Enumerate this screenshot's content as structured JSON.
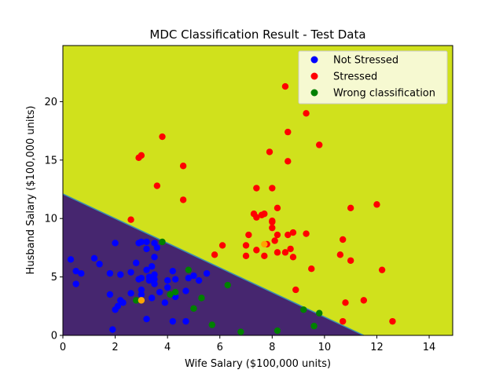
{
  "chart_data": {
    "type": "scatter",
    "title": "MDC Classification Result - Test Data",
    "xlabel": "Wife Salary ($100,000 units)",
    "ylabel": "Husband Salary ($100,000 units)",
    "xlim": [
      0,
      14.9
    ],
    "ylim": [
      0,
      24.8
    ],
    "xticks": [
      0,
      2,
      4,
      6,
      8,
      10,
      12,
      14
    ],
    "yticks": [
      0,
      5,
      10,
      15,
      20
    ],
    "grid": false,
    "legend_position": "top-right",
    "decision_boundary": {
      "points": [
        [
          0,
          12.1
        ],
        [
          11.5,
          0
        ]
      ],
      "region_below_color": "#46266f",
      "region_above_color": "#d0e11c",
      "line_color": "#3a8fb0"
    },
    "series": [
      {
        "name": "Not Stressed",
        "color": "#0000ff",
        "points": [
          [
            0.3,
            6.5
          ],
          [
            0.5,
            4.4
          ],
          [
            0.5,
            5.5
          ],
          [
            0.7,
            5.3
          ],
          [
            1.2,
            6.6
          ],
          [
            1.4,
            6.1
          ],
          [
            1.8,
            3.5
          ],
          [
            1.8,
            5.3
          ],
          [
            1.9,
            0.5
          ],
          [
            2.0,
            7.9
          ],
          [
            2.0,
            2.2
          ],
          [
            2.1,
            2.5
          ],
          [
            2.2,
            3.0
          ],
          [
            2.2,
            5.2
          ],
          [
            2.3,
            2.8
          ],
          [
            2.6,
            5.4
          ],
          [
            2.6,
            3.6
          ],
          [
            2.8,
            6.2
          ],
          [
            2.9,
            7.9
          ],
          [
            2.9,
            4.8
          ],
          [
            3.0,
            8.0
          ],
          [
            3.0,
            4.9
          ],
          [
            3.0,
            3.9
          ],
          [
            3.0,
            3.5
          ],
          [
            3.2,
            8.0
          ],
          [
            3.2,
            7.4
          ],
          [
            3.2,
            5.6
          ],
          [
            3.2,
            1.4
          ],
          [
            3.3,
            5.0
          ],
          [
            3.3,
            4.7
          ],
          [
            3.4,
            5.9
          ],
          [
            3.4,
            3.2
          ],
          [
            3.5,
            7.9
          ],
          [
            3.5,
            6.7
          ],
          [
            3.5,
            5.2
          ],
          [
            3.5,
            4.8
          ],
          [
            3.5,
            4.4
          ],
          [
            3.6,
            7.5
          ],
          [
            3.7,
            3.7
          ],
          [
            3.9,
            2.8
          ],
          [
            4.0,
            4.7
          ],
          [
            4.0,
            4.1
          ],
          [
            4.2,
            5.5
          ],
          [
            4.2,
            1.2
          ],
          [
            4.3,
            4.8
          ],
          [
            4.3,
            3.3
          ],
          [
            4.7,
            1.2
          ],
          [
            4.7,
            3.8
          ],
          [
            4.8,
            4.9
          ],
          [
            5.0,
            5.1
          ],
          [
            5.2,
            4.7
          ],
          [
            5.5,
            5.3
          ]
        ]
      },
      {
        "name": "Stressed",
        "color": "#ff0000",
        "points": [
          [
            2.6,
            9.9
          ],
          [
            2.9,
            15.2
          ],
          [
            3.0,
            15.4
          ],
          [
            3.6,
            12.8
          ],
          [
            3.8,
            17.0
          ],
          [
            4.6,
            11.6
          ],
          [
            4.6,
            14.5
          ],
          [
            5.8,
            6.9
          ],
          [
            6.1,
            7.7
          ],
          [
            7.0,
            6.8
          ],
          [
            7.0,
            7.7
          ],
          [
            7.1,
            8.6
          ],
          [
            7.3,
            10.4
          ],
          [
            7.4,
            7.3
          ],
          [
            7.4,
            12.6
          ],
          [
            7.4,
            10.1
          ],
          [
            7.6,
            10.3
          ],
          [
            7.7,
            6.8
          ],
          [
            7.7,
            10.4
          ],
          [
            7.8,
            7.8
          ],
          [
            7.9,
            15.7
          ],
          [
            8.0,
            9.7
          ],
          [
            8.0,
            9.2
          ],
          [
            8.0,
            9.8
          ],
          [
            8.0,
            12.6
          ],
          [
            8.1,
            8.1
          ],
          [
            8.2,
            8.6
          ],
          [
            8.2,
            10.9
          ],
          [
            8.2,
            7.1
          ],
          [
            8.5,
            7.1
          ],
          [
            8.5,
            21.3
          ],
          [
            8.6,
            17.4
          ],
          [
            8.6,
            14.9
          ],
          [
            8.6,
            8.6
          ],
          [
            8.7,
            7.4
          ],
          [
            8.8,
            8.8
          ],
          [
            8.8,
            6.7
          ],
          [
            8.9,
            3.9
          ],
          [
            9.3,
            19.0
          ],
          [
            9.3,
            8.7
          ],
          [
            9.5,
            5.7
          ],
          [
            9.8,
            16.3
          ],
          [
            10.6,
            6.9
          ],
          [
            10.7,
            8.2
          ],
          [
            10.7,
            1.2
          ],
          [
            10.8,
            2.8
          ],
          [
            11.0,
            10.9
          ],
          [
            11.0,
            6.4
          ],
          [
            11.5,
            3.0
          ],
          [
            12.0,
            11.2
          ],
          [
            12.2,
            5.6
          ],
          [
            12.6,
            1.2
          ]
        ]
      },
      {
        "name": "Wrong classification",
        "color": "#008000",
        "points": [
          [
            2.8,
            3.0
          ],
          [
            3.8,
            8.0
          ],
          [
            4.1,
            3.5
          ],
          [
            4.3,
            3.7
          ],
          [
            4.8,
            5.6
          ],
          [
            5.0,
            2.3
          ],
          [
            5.3,
            3.2
          ],
          [
            5.7,
            0.9
          ],
          [
            6.3,
            4.3
          ],
          [
            6.8,
            0.3
          ],
          [
            8.2,
            0.4
          ],
          [
            9.2,
            2.2
          ],
          [
            9.6,
            0.8
          ],
          [
            9.8,
            1.9
          ]
        ]
      },
      {
        "name": "",
        "color": "#ffa500",
        "points": [
          [
            3.0,
            3.0
          ],
          [
            7.7,
            7.8
          ]
        ]
      }
    ]
  }
}
